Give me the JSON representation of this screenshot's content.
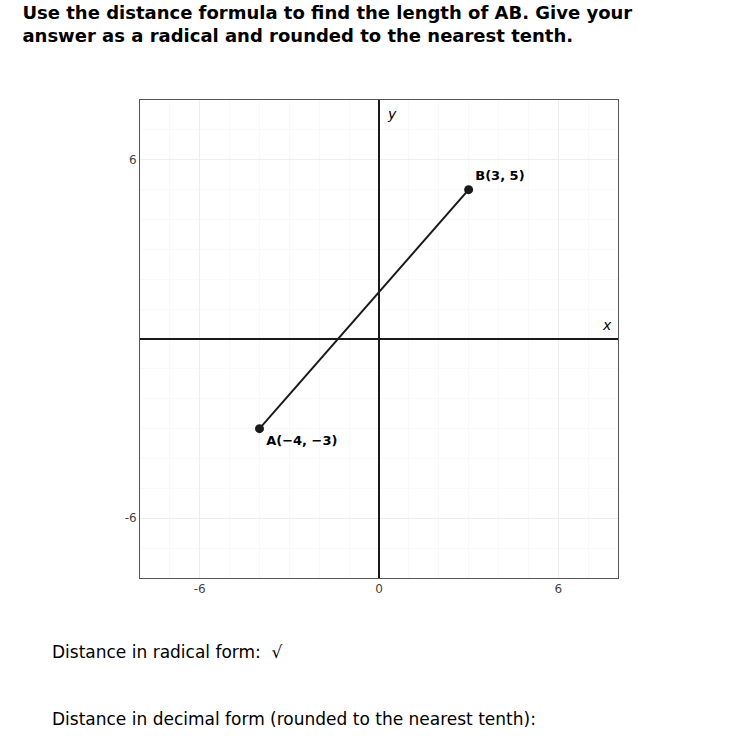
{
  "chart_data": {
    "type": "line",
    "title": "Use the distance formula to find the length of AB. Give your",
    "subtitle": "answer as a radical and rounded to the nearest tenth.",
    "xlabel": "x",
    "ylabel": "y",
    "x": [
      -4,
      3
    ],
    "values": [
      -3,
      5
    ],
    "value_labels": [
      "A(−4, −3)",
      "B(3, 5)"
    ],
    "data_labels": true,
    "color": "#1a1a1a",
    "marker": "circle",
    "line_style": "solid",
    "xlim": [
      -8,
      8
    ],
    "ylim": [
      -8,
      8
    ],
    "xticks": [
      -6,
      0,
      6
    ],
    "yticks": [
      -6,
      6
    ],
    "grid": true,
    "annotations": [
      "Distance in radical form:  √",
      "Distance in decimal form (rounded to the nearest tenth):"
    ]
  }
}
